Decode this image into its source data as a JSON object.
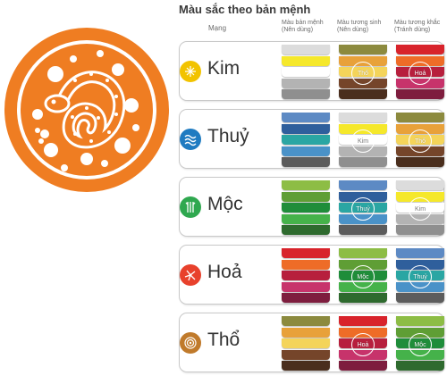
{
  "title": "Màu sắc theo bản mệnh",
  "headers": {
    "mang": "Mạng",
    "c1": [
      "Màu bản mệnh",
      "(Nên dùng)"
    ],
    "c2": [
      "Màu tương sinh",
      "(Nên dùng)"
    ],
    "c3": [
      "Màu tương khắc",
      "(Tránh dùng)"
    ]
  },
  "rows": [
    {
      "name": "Kim",
      "icon": "kim-icon",
      "circle": "#f2c300",
      "c1": [
        "#dcdcdc",
        "#f5e82b",
        "#ffffff",
        "#b3b3b3",
        "#8f8f8f"
      ],
      "c2": [
        "#8c8a3e",
        "#e8a13a",
        "#f4d45a",
        "#75452a",
        "#4a2e1d"
      ],
      "c2_badge": "Thổ",
      "c3": [
        "#d8232b",
        "#ee6c27",
        "#b71f3d",
        "#c7336b",
        "#7e1d3e"
      ],
      "c3_badge": "Hoả"
    },
    {
      "name": "Thuỷ",
      "icon": "thuy-icon",
      "circle": "#1f7bc1",
      "c1": [
        "#5d8ac4",
        "#2f5f9c",
        "#2aa6a3",
        "#4a92c8",
        "#5c5c5c"
      ],
      "c2": [
        "#dcdcdc",
        "#f5e82b",
        "#ffffff",
        "#b3b3b3",
        "#8f8f8f"
      ],
      "c2_badge": "Kim",
      "c3": [
        "#8c8a3e",
        "#e8a13a",
        "#f4d45a",
        "#75452a",
        "#4a2e1d"
      ],
      "c3_badge": "Thổ"
    },
    {
      "name": "Mộc",
      "icon": "moc-icon",
      "circle": "#2fa84f",
      "c1": [
        "#8dbd45",
        "#5f9e35",
        "#1f8d3a",
        "#45b24a",
        "#2e6a2e"
      ],
      "c2": [
        "#5d8ac4",
        "#2f5f9c",
        "#2aa6a3",
        "#4a92c8",
        "#5c5c5c"
      ],
      "c2_badge": "Thuỷ",
      "c3": [
        "#dcdcdc",
        "#f5e82b",
        "#ffffff",
        "#b3b3b3",
        "#8f8f8f"
      ],
      "c3_badge": "Kim"
    },
    {
      "name": "Hoả",
      "icon": "hoa-icon",
      "circle": "#e8412c",
      "c1": [
        "#d8232b",
        "#ee6c27",
        "#b71f3d",
        "#c7336b",
        "#7e1d3e"
      ],
      "c2": [
        "#8dbd45",
        "#5f9e35",
        "#1f8d3a",
        "#45b24a",
        "#2e6a2e"
      ],
      "c2_badge": "Mộc",
      "c3": [
        "#5d8ac4",
        "#2f5f9c",
        "#2aa6a3",
        "#4a92c8",
        "#5c5c5c"
      ],
      "c3_badge": "Thuỷ"
    },
    {
      "name": "Thổ",
      "icon": "tho-icon",
      "circle": "#c07a2b",
      "c1": [
        "#8c8a3e",
        "#e8a13a",
        "#f4d45a",
        "#75452a",
        "#4a2e1d"
      ],
      "c2": [
        "#d8232b",
        "#ee6c27",
        "#b71f3d",
        "#c7336b",
        "#7e1d3e"
      ],
      "c2_badge": "Hoả",
      "c3": [
        "#8dbd45",
        "#5f9e35",
        "#1f8d3a",
        "#45b24a",
        "#2e6a2e"
      ],
      "c3_badge": "Mộc"
    }
  ],
  "emblem": {
    "color": "#ef7d22",
    "icon": "snake-papercut-icon"
  }
}
